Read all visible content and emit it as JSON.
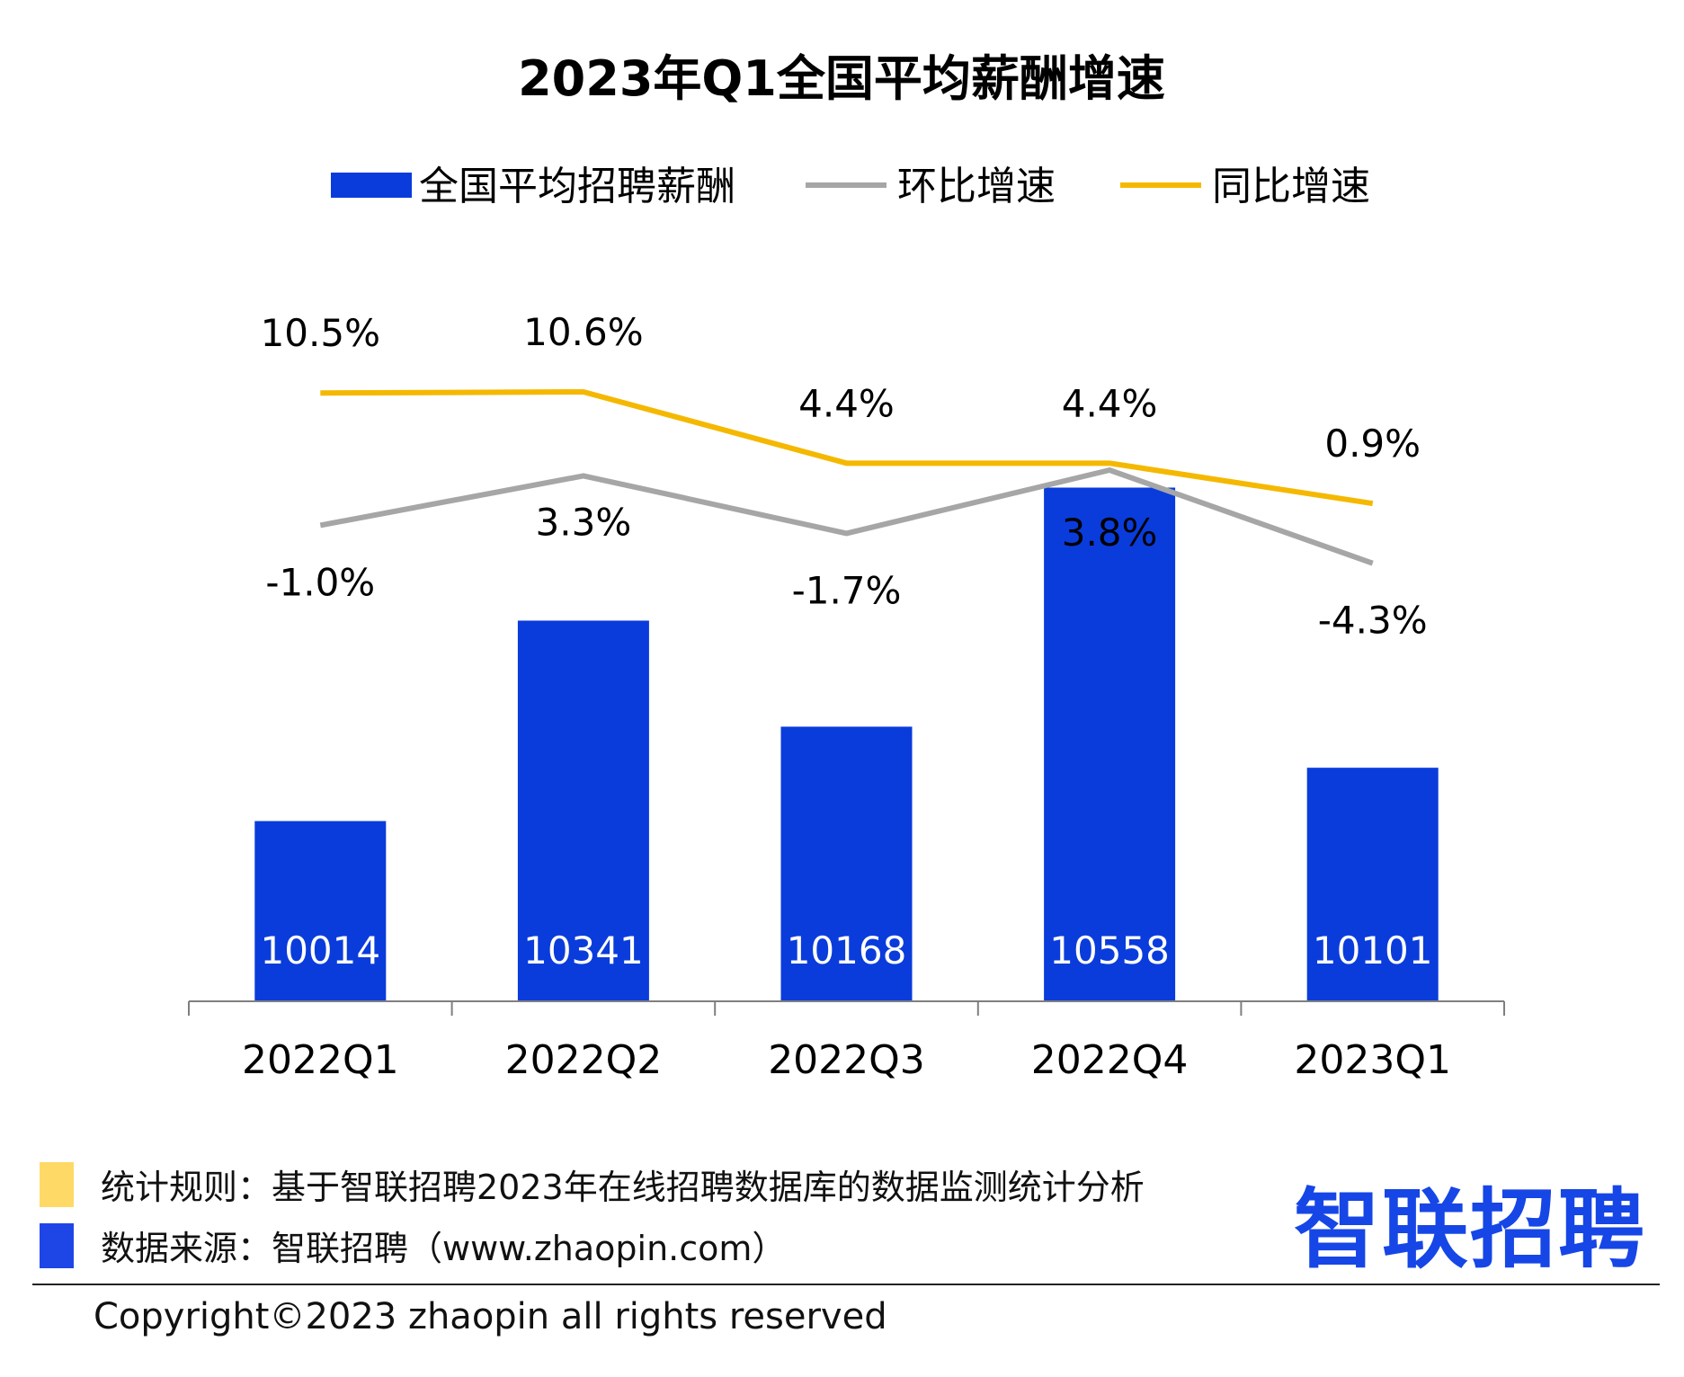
{
  "colors": {
    "bar": "#0a3cdc",
    "mom_line": "#a6a6a6",
    "yoy_line": "#f5b800",
    "note_swatch": "#ffd966",
    "source_swatch": "#1e46e6",
    "logo": "#1646e6",
    "axis": "#7f7f7f"
  },
  "chart_data": {
    "type": "bar",
    "title": "2023年Q1全国平均薪酬增速",
    "categories": [
      "2022Q1",
      "2022Q2",
      "2022Q3",
      "2022Q4",
      "2023Q1"
    ],
    "series": [
      {
        "name": "全国平均招聘薪酬",
        "type": "bar",
        "values": [
          10014,
          10341,
          10168,
          10558,
          10101
        ],
        "labels": [
          "10014",
          "10341",
          "10168",
          "10558",
          "10101"
        ]
      },
      {
        "name": "环比增速",
        "type": "line",
        "values": [
          -1.0,
          3.3,
          -1.7,
          3.8,
          -4.3
        ],
        "labels": [
          "-1.0%",
          "3.3%",
          "-1.7%",
          "3.8%",
          "-4.3%"
        ]
      },
      {
        "name": "同比增速",
        "type": "line",
        "values": [
          10.5,
          10.6,
          4.4,
          4.4,
          0.9
        ],
        "labels": [
          "10.5%",
          "10.6%",
          "4.4%",
          "4.4%",
          "0.9%"
        ]
      }
    ],
    "legend": "top",
    "grid": false
  },
  "footer": {
    "note": "统计规则：基于智联招聘2023年在线招聘数据库的数据监测统计分析",
    "source": "数据来源：智联招聘（www.zhaopin.com）",
    "copyright": "Copyright©2023 zhaopin all rights reserved",
    "logo": "智联招聘"
  },
  "icons": {
    "logo_dot": "location-pin-icon"
  }
}
